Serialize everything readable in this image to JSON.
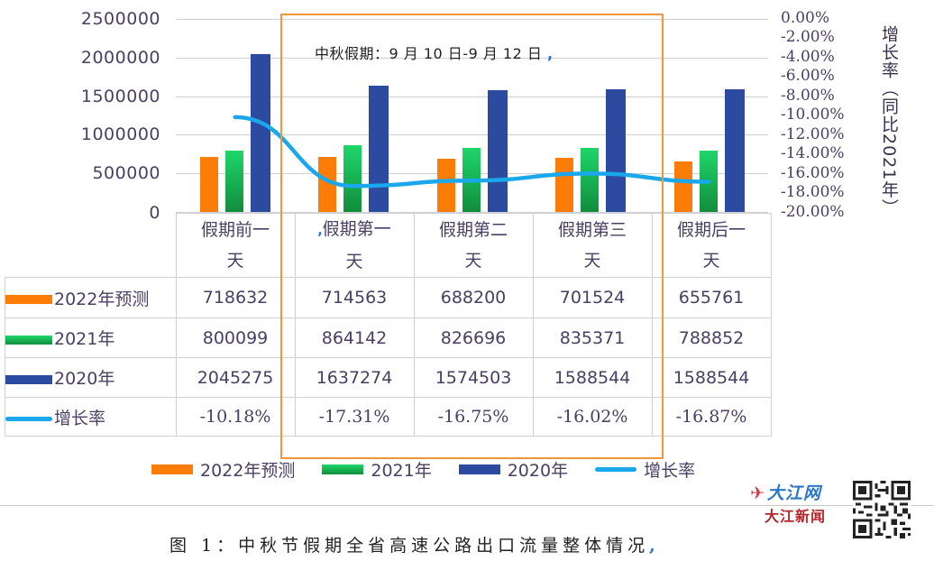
{
  "chart_data": {
    "type": "bar",
    "title": "中秋节假期全省高速公路出口流量整体情况",
    "annotation": "中秋假期：9 月 10 日-9 月 12 日",
    "categories": [
      "假期前一天",
      "假期第一天",
      "假期第二天",
      "假期第三天",
      "假期后一天"
    ],
    "series": [
      {
        "name": "2022年预测",
        "type": "bar",
        "axis": "left",
        "color": "#fb7d07",
        "values": [
          718632,
          714563,
          688200,
          701524,
          655761
        ]
      },
      {
        "name": "2021年",
        "type": "bar",
        "axis": "left",
        "color": "#1fb553",
        "values": [
          800099,
          864142,
          826696,
          835371,
          788852
        ]
      },
      {
        "name": "2020年",
        "type": "bar",
        "axis": "left",
        "color": "#2b4aa0",
        "values": [
          2045275,
          1637274,
          1574503,
          1588544,
          1588544
        ]
      },
      {
        "name": "增长率",
        "type": "line",
        "axis": "right",
        "color": "#1aa7ec",
        "values": [
          -10.18,
          -17.31,
          -16.75,
          -16.02,
          -16.87
        ],
        "unit": "%"
      }
    ],
    "xlabel": "",
    "ylabel": "",
    "y2label": "增长率（同比2021年）",
    "ylim": [
      0,
      2500000
    ],
    "y2lim": [
      -20,
      0
    ],
    "grid": true,
    "legend_position": "bottom",
    "data_table": true
  },
  "axes": {
    "left_ticks": [
      "2500000",
      "2000000",
      "1500000",
      "1000000",
      "500000",
      "0"
    ],
    "right_ticks": [
      "0.00%",
      "-2.00%",
      "-4.00%",
      "-6.00%",
      "-8.00%",
      "-10.00%",
      "-12.00%",
      "-14.00%",
      "-16.00%",
      "-18.00%",
      "-20.00%"
    ],
    "right_title": "增长率（同比2021年）"
  },
  "table": {
    "headers": [
      {
        "line1": "假期前一",
        "line2": "天"
      },
      {
        "line1": "假期第一",
        "line2": "天"
      },
      {
        "line1": "假期第二",
        "line2": "天"
      },
      {
        "line1": "假期第三",
        "line2": "天"
      },
      {
        "line1": "假期后一",
        "line2": "天"
      }
    ],
    "rows": [
      {
        "label": "2022年预测",
        "cells": [
          "718632",
          "714563",
          "688200",
          "701524",
          "655761"
        ]
      },
      {
        "label": "2021年",
        "cells": [
          "800099",
          "864142",
          "826696",
          "835371",
          "788852"
        ]
      },
      {
        "label": "2020年",
        "cells": [
          "2045275",
          "1637274",
          "1574503",
          "1588544",
          "1588544"
        ]
      },
      {
        "label": "增长率",
        "cells": [
          "-10.18%",
          "-17.31%",
          "-16.75%",
          "-16.02%",
          "-16.87%"
        ]
      }
    ]
  },
  "legend": [
    {
      "label": "2022年预测"
    },
    {
      "label": "2021年"
    },
    {
      "label": "2020年"
    },
    {
      "label": "增长率"
    }
  ],
  "annotation": {
    "text": "中秋假期：9 月 10 日-9 月 12 日",
    "mark": "ˏ"
  },
  "caption": {
    "text": "图 1：中秋节假期全省高速公路出口流量整体情况",
    "mark": ","
  },
  "watermark": {
    "site": "大江网",
    "sub": "大江新闻"
  },
  "colors": {
    "orange": "#fb7d07",
    "green": "#1fb553",
    "blue": "#2b4aa0",
    "line": "#1aa7ec",
    "highlight_box": "#f2963a"
  }
}
